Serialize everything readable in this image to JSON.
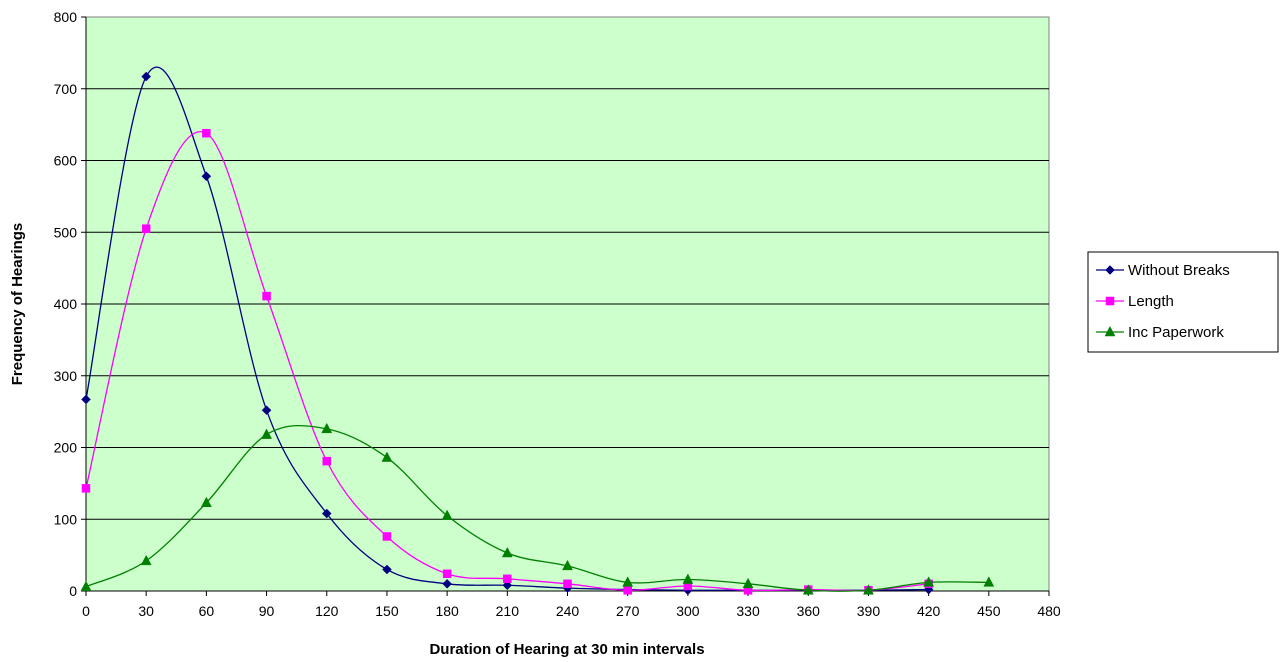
{
  "chart_data": {
    "type": "line",
    "xlabel": "Duration of Hearing at 30 min intervals",
    "ylabel": "Frequency of Hearings",
    "xlim": [
      0,
      480
    ],
    "ylim": [
      0,
      800
    ],
    "x_ticks": [
      0,
      30,
      60,
      90,
      120,
      150,
      180,
      210,
      240,
      270,
      300,
      330,
      360,
      390,
      420,
      450,
      480
    ],
    "y_ticks": [
      0,
      100,
      200,
      300,
      400,
      500,
      600,
      700,
      800
    ],
    "grid": "horizontal",
    "plot_background": "#ccffcc",
    "legend_position": "right",
    "smoothed": true,
    "series": [
      {
        "name": "Without Breaks",
        "color": "#000080",
        "marker": "diamond",
        "x": [
          0,
          30,
          60,
          90,
          120,
          150,
          180,
          210,
          240,
          270,
          300,
          330,
          360,
          390,
          420
        ],
        "y": [
          267,
          717,
          578,
          252,
          108,
          30,
          10,
          8,
          4,
          2,
          1,
          1,
          1,
          1,
          2
        ]
      },
      {
        "name": "Length",
        "color": "#ff00ff",
        "marker": "square",
        "x": [
          0,
          30,
          60,
          90,
          120,
          150,
          180,
          210,
          240,
          270,
          300,
          330,
          360,
          390,
          420
        ],
        "y": [
          143,
          505,
          638,
          411,
          181,
          76,
          24,
          17,
          10,
          1,
          7,
          1,
          2,
          1,
          10
        ]
      },
      {
        "name": "Inc Paperwork",
        "color": "#008000",
        "marker": "triangle",
        "x": [
          0,
          30,
          60,
          90,
          120,
          150,
          180,
          210,
          240,
          270,
          300,
          330,
          360,
          390,
          420,
          450
        ],
        "y": [
          6,
          42,
          123,
          218,
          226,
          186,
          105,
          53,
          35,
          12,
          16,
          10,
          1,
          1,
          12,
          12
        ]
      }
    ]
  }
}
